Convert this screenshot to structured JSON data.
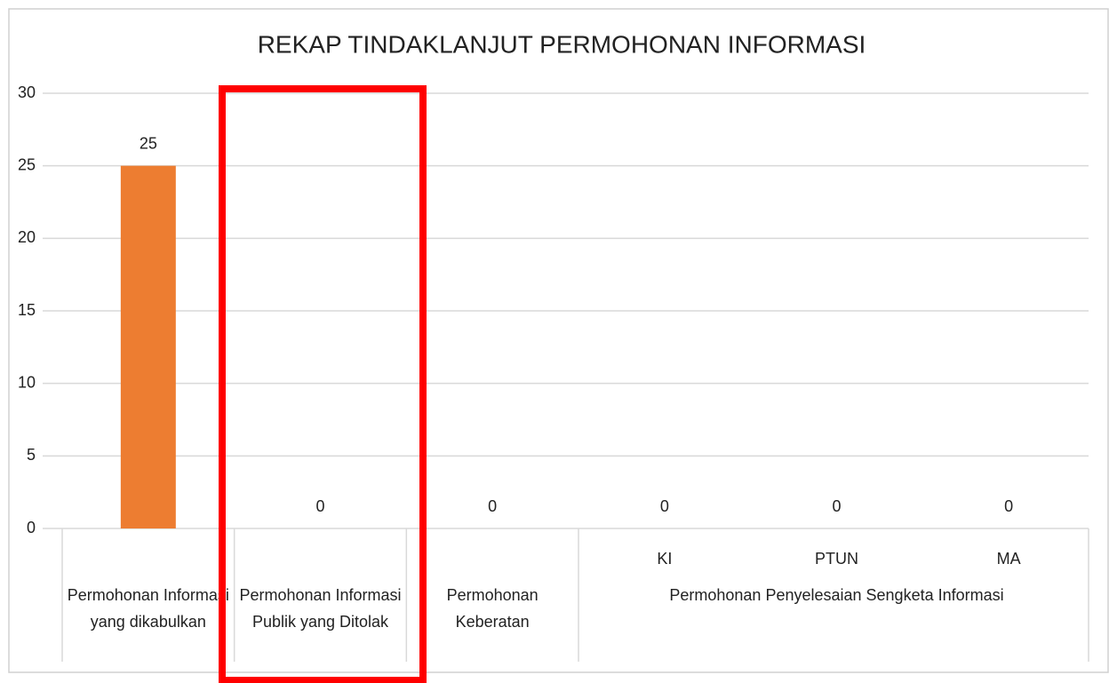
{
  "chart_data": {
    "type": "bar",
    "title": "REKAP TINDAKLANJUT PERMOHONAN INFORMASI",
    "categories": [
      null,
      null,
      null,
      "KI",
      "PTUN",
      "MA"
    ],
    "groups": [
      {
        "label": "Permohonan Informasi yang dikabulkan",
        "size": 1
      },
      {
        "label": "Permohonan Informasi Publik yang Ditolak",
        "size": 1
      },
      {
        "label": "Permohonan Keberatan",
        "size": 1
      },
      {
        "label": "Permohonan Penyelesaian Sengketa Informasi",
        "size": 3
      }
    ],
    "values": [
      25,
      0,
      0,
      0,
      0,
      0
    ],
    "color": "#ed7d31",
    "ylim": [
      0,
      30
    ],
    "yticks": [
      0,
      5,
      10,
      15,
      20,
      25,
      30
    ],
    "grid": true,
    "data_labels": true
  }
}
